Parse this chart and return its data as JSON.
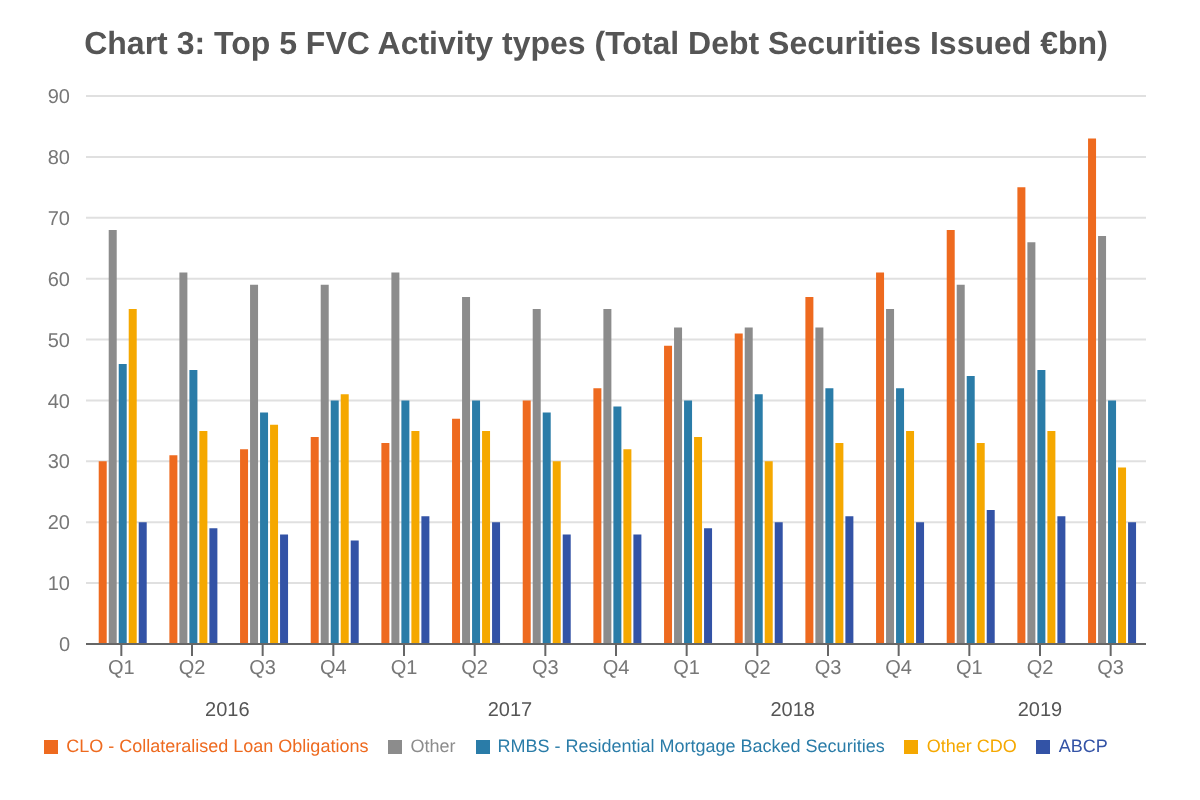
{
  "chart_data": {
    "type": "bar",
    "title": "Chart 3: Top 5 FVC Activity types (Total Debt Securities Issued €bn)",
    "categories": [
      "Q1",
      "Q2",
      "Q3",
      "Q4",
      "Q1",
      "Q2",
      "Q3",
      "Q4",
      "Q1",
      "Q2",
      "Q3",
      "Q4",
      "Q1",
      "Q2",
      "Q3"
    ],
    "series": [
      {
        "name": "CLO - Collateralised Loan Obligations",
        "color": "#ee6a1f",
        "values": [
          30,
          31,
          32,
          34,
          33,
          37,
          40,
          42,
          49,
          51,
          57,
          61,
          68,
          75,
          83
        ]
      },
      {
        "name": "Other",
        "color": "#8c8c8c",
        "values": [
          68,
          61,
          59,
          59,
          61,
          57,
          55,
          55,
          52,
          52,
          52,
          55,
          59,
          66,
          67
        ]
      },
      {
        "name": "RMBS - Residential Mortgage Backed Securities",
        "color": "#2a7ca8",
        "values": [
          46,
          45,
          38,
          40,
          40,
          40,
          38,
          39,
          40,
          41,
          42,
          42,
          44,
          45,
          40
        ]
      },
      {
        "name": "Other CDO",
        "color": "#f5a800",
        "values": [
          55,
          35,
          36,
          41,
          35,
          35,
          30,
          32,
          34,
          30,
          33,
          35,
          33,
          35,
          29
        ]
      },
      {
        "name": "ABCP",
        "color": "#3353a6",
        "values": [
          20,
          19,
          18,
          17,
          21,
          20,
          18,
          18,
          19,
          20,
          21,
          20,
          22,
          21,
          20
        ]
      }
    ],
    "annotations": [
      "2016",
      "2017",
      "2018",
      "2019"
    ],
    "ylim": [
      0,
      90
    ],
    "yticks": [
      0,
      10,
      20,
      30,
      40,
      50,
      60,
      70,
      80,
      90
    ],
    "grid": "y",
    "legend": "bottom"
  }
}
